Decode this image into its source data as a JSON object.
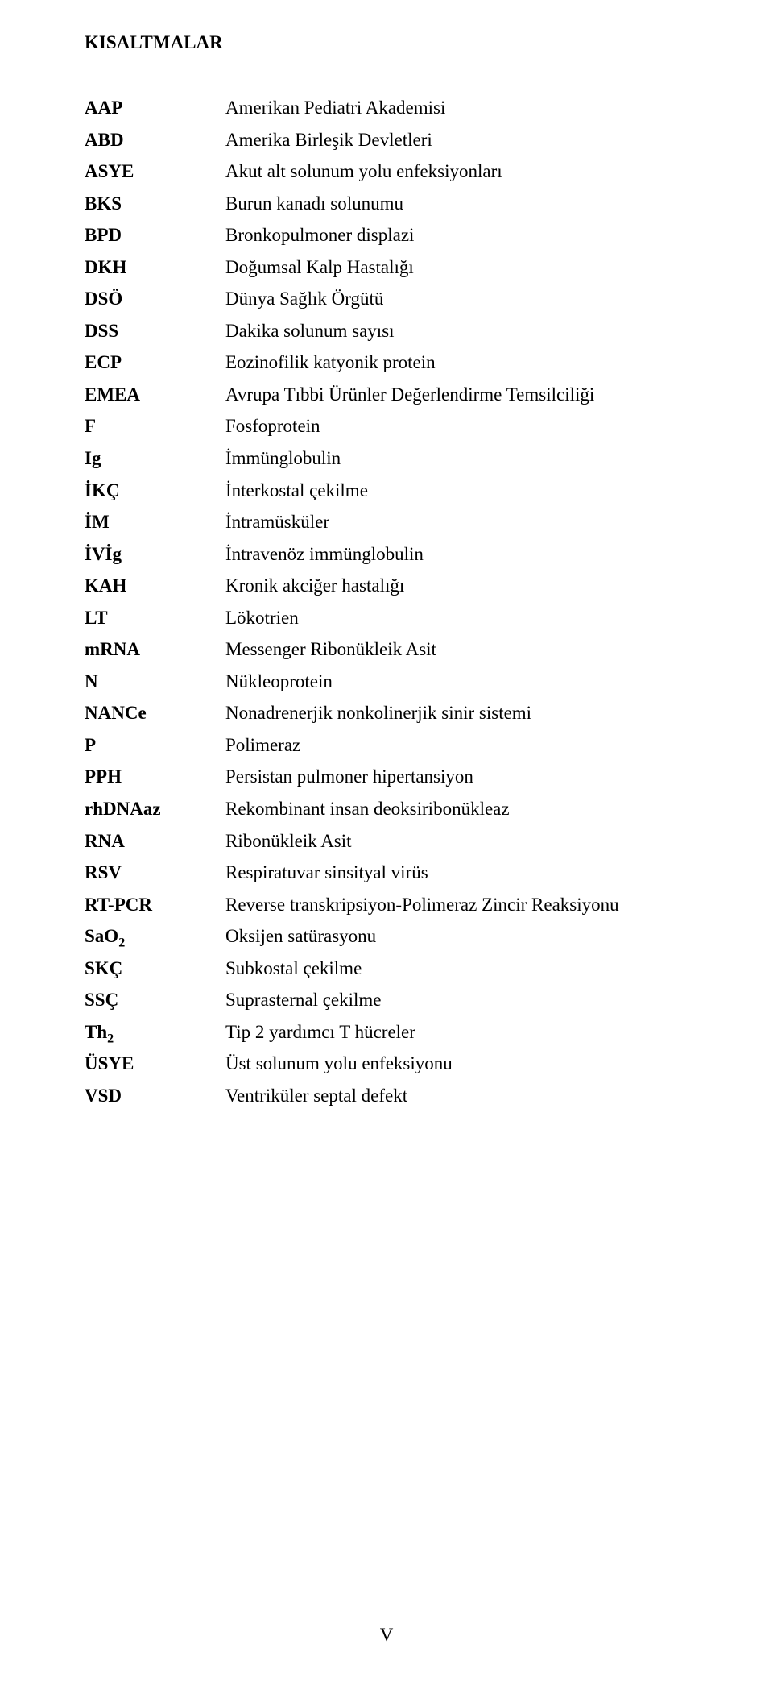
{
  "title": "KISALTMALAR",
  "page_number": "V",
  "rows": [
    {
      "key_html": "AAP",
      "val": "Amerikan Pediatri Akademisi"
    },
    {
      "key_html": "ABD",
      "val": "Amerika Birleşik Devletleri"
    },
    {
      "key_html": "ASYE",
      "val": "Akut alt solunum yolu enfeksiyonları"
    },
    {
      "key_html": "BKS",
      "val": "Burun kanadı solunumu"
    },
    {
      "key_html": "BPD",
      "val": "Bronkopulmoner displazi"
    },
    {
      "key_html": "DKH",
      "val": "Doğumsal Kalp Hastalığı"
    },
    {
      "key_html": "DSÖ",
      "val": "Dünya Sağlık Örgütü"
    },
    {
      "key_html": "DSS",
      "val": "Dakika solunum sayısı"
    },
    {
      "key_html": "ECP",
      "val": "Eozinofilik katyonik protein"
    },
    {
      "key_html": "EMEA",
      "val": "Avrupa Tıbbi Ürünler Değerlendirme Temsilciliği"
    },
    {
      "key_html": "F",
      "val": "Fosfoprotein"
    },
    {
      "key_html": "Ig",
      "val": "İmmünglobulin"
    },
    {
      "key_html": "İKÇ",
      "val": "İnterkostal çekilme"
    },
    {
      "key_html": "İM",
      "val": "İntramüsküler"
    },
    {
      "key_html": "İVİg",
      "val": "İntravenöz immünglobulin"
    },
    {
      "key_html": "KAH",
      "val": "Kronik akciğer hastalığı"
    },
    {
      "key_html": "LT",
      "val": "Lökotrien"
    },
    {
      "key_html": "mRNA",
      "val": "Messenger Ribonükleik Asit"
    },
    {
      "key_html": "N",
      "val": "Nükleoprotein"
    },
    {
      "key_html": "NANCe",
      "val": "Nonadrenerjik nonkolinerjik sinir sistemi"
    },
    {
      "key_html": "P",
      "val": "Polimeraz"
    },
    {
      "key_html": "PPH",
      "val": "Persistan pulmoner hipertansiyon"
    },
    {
      "key_html": "rhDNAaz",
      "val": "Rekombinant insan deoksiribonükleaz"
    },
    {
      "key_html": "RNA",
      "val": "Ribonükleik Asit"
    },
    {
      "key_html": "RSV",
      "val": "Respiratuvar sinsityal virüs"
    },
    {
      "key_html": "RT-PCR",
      "val": "Reverse transkripsiyon-Polimeraz Zincir Reaksiyonu"
    },
    {
      "key_html": "SaO<span class=\"sub\">2</span>",
      "val": "Oksijen satürasyonu"
    },
    {
      "key_html": "SKÇ",
      "val": "Subkostal çekilme"
    },
    {
      "key_html": "SSÇ",
      "val": "Suprasternal çekilme"
    },
    {
      "key_html": "Th<span class=\"sub\">2</span>",
      "val": "Tip 2 yardımcı T hücreler"
    },
    {
      "key_html": "ÜSYE",
      "val": "Üst solunum yolu enfeksiyonu"
    },
    {
      "key_html": "VSD",
      "val": "Ventriküler septal defekt"
    }
  ]
}
